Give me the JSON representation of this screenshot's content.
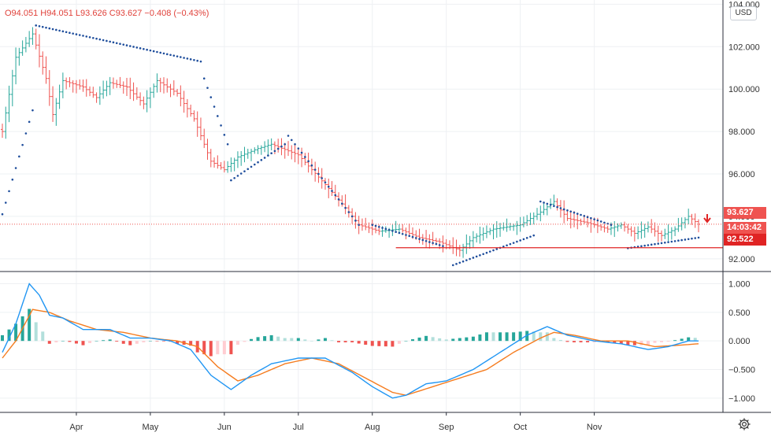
{
  "legend": {
    "open": "O94.051",
    "high": "H94.051",
    "low": "L93.626",
    "close": "C93.627",
    "change": "−0.408 (−0.43%)"
  },
  "currency": "USD",
  "price_tags": {
    "last_price": "93.627",
    "countdown": "14:03:42",
    "horizontal_line": "92.522"
  },
  "colors": {
    "up": "#26a69a",
    "down": "#ef5350",
    "psar": "#1f4e9c",
    "macd": "#2196f3",
    "signal": "#f57c1f",
    "hist_pos_strong": "#26a69a",
    "hist_pos_weak": "#b2dfdb",
    "hist_neg_strong": "#ef5350",
    "hist_neg_weak": "#ffcdd2",
    "last_price_tag": "#ef5350",
    "line_tag": "#e02424"
  },
  "chart_data": [
    {
      "type": "ohlc",
      "title": "",
      "y_ticks": [
        "104.000",
        "102.000",
        "100.000",
        "98.000",
        "96.000",
        "94.000",
        "92.000"
      ],
      "ylim": [
        91.4,
        104.2
      ],
      "x_ticks": [
        "Apr",
        "May",
        "Jun",
        "Jul",
        "Aug",
        "Sep",
        "Oct",
        "Nov"
      ],
      "close_anchors": [
        [
          0,
          98.0
        ],
        [
          4,
          101.5
        ],
        [
          9,
          102.6
        ],
        [
          13,
          100.5
        ],
        [
          15,
          98.8
        ],
        [
          18,
          100.4
        ],
        [
          24,
          100.1
        ],
        [
          28,
          99.6
        ],
        [
          32,
          100.3
        ],
        [
          37,
          100.1
        ],
        [
          42,
          99.3
        ],
        [
          46,
          100.4
        ],
        [
          52,
          99.8
        ],
        [
          57,
          98.6
        ],
        [
          62,
          96.6
        ],
        [
          66,
          96.2
        ],
        [
          70,
          96.8
        ],
        [
          76,
          97.2
        ],
        [
          80,
          97.4
        ],
        [
          88,
          96.9
        ],
        [
          96,
          95.5
        ],
        [
          102,
          94.4
        ],
        [
          106,
          93.6
        ],
        [
          112,
          93.3
        ],
        [
          118,
          93.4
        ],
        [
          124,
          93.0
        ],
        [
          130,
          92.8
        ],
        [
          136,
          92.4
        ],
        [
          140,
          93.0
        ],
        [
          146,
          93.4
        ],
        [
          154,
          93.6
        ],
        [
          160,
          94.2
        ],
        [
          164,
          94.7
        ],
        [
          168,
          93.9
        ],
        [
          174,
          93.7
        ],
        [
          180,
          93.4
        ],
        [
          184,
          93.6
        ],
        [
          188,
          93.2
        ],
        [
          192,
          93.5
        ],
        [
          196,
          93.1
        ],
        [
          200,
          93.4
        ],
        [
          204,
          94.0
        ],
        [
          207,
          93.63
        ]
      ],
      "psar_segments": [
        {
          "start": 0,
          "end": 9,
          "from": 94.1,
          "to": 99.0
        },
        {
          "start": 10,
          "end": 59,
          "from": 103.0,
          "to": 101.3
        },
        {
          "start": 60,
          "end": 67,
          "from": 100.5,
          "to": 97.4
        },
        {
          "start": 68,
          "end": 84,
          "from": 95.7,
          "to": 97.4
        },
        {
          "start": 85,
          "end": 106,
          "from": 97.8,
          "to": 93.6
        },
        {
          "start": 110,
          "end": 131,
          "from": 93.6,
          "to": 92.6
        },
        {
          "start": 134,
          "end": 158,
          "from": 91.7,
          "to": 93.1
        },
        {
          "start": 160,
          "end": 181,
          "from": 94.7,
          "to": 93.6
        },
        {
          "start": 186,
          "end": 207,
          "from": 92.5,
          "to": 93.0
        }
      ],
      "horizontal_line": 92.522
    },
    {
      "type": "macd",
      "y_ticks": [
        "1.000",
        "0.500",
        "0.000",
        "−0.500",
        "−1.000"
      ],
      "ylim": [
        -1.25,
        1.2
      ],
      "macd_anchors": [
        [
          0,
          -0.2
        ],
        [
          4,
          0.3
        ],
        [
          8,
          1.0
        ],
        [
          11,
          0.8
        ],
        [
          14,
          0.45
        ],
        [
          18,
          0.4
        ],
        [
          24,
          0.2
        ],
        [
          32,
          0.2
        ],
        [
          38,
          0.05
        ],
        [
          44,
          0.05
        ],
        [
          50,
          0.0
        ],
        [
          56,
          -0.15
        ],
        [
          62,
          -0.6
        ],
        [
          68,
          -0.85
        ],
        [
          74,
          -0.6
        ],
        [
          80,
          -0.4
        ],
        [
          88,
          -0.3
        ],
        [
          96,
          -0.3
        ],
        [
          104,
          -0.55
        ],
        [
          110,
          -0.8
        ],
        [
          116,
          -1.0
        ],
        [
          120,
          -0.95
        ],
        [
          126,
          -0.75
        ],
        [
          132,
          -0.7
        ],
        [
          140,
          -0.5
        ],
        [
          148,
          -0.2
        ],
        [
          156,
          0.1
        ],
        [
          162,
          0.25
        ],
        [
          168,
          0.1
        ],
        [
          176,
          0.0
        ],
        [
          184,
          -0.05
        ],
        [
          192,
          -0.15
        ],
        [
          198,
          -0.1
        ],
        [
          204,
          0.0
        ],
        [
          207,
          0.0
        ]
      ],
      "signal_anchors": [
        [
          0,
          -0.3
        ],
        [
          4,
          0.0
        ],
        [
          9,
          0.55
        ],
        [
          14,
          0.5
        ],
        [
          20,
          0.35
        ],
        [
          28,
          0.2
        ],
        [
          36,
          0.15
        ],
        [
          44,
          0.05
        ],
        [
          52,
          0.0
        ],
        [
          58,
          -0.1
        ],
        [
          64,
          -0.45
        ],
        [
          70,
          -0.7
        ],
        [
          76,
          -0.6
        ],
        [
          84,
          -0.4
        ],
        [
          92,
          -0.3
        ],
        [
          100,
          -0.4
        ],
        [
          108,
          -0.65
        ],
        [
          116,
          -0.9
        ],
        [
          120,
          -0.95
        ],
        [
          128,
          -0.8
        ],
        [
          136,
          -0.65
        ],
        [
          144,
          -0.5
        ],
        [
          152,
          -0.2
        ],
        [
          160,
          0.05
        ],
        [
          164,
          0.15
        ],
        [
          170,
          0.1
        ],
        [
          178,
          0.0
        ],
        [
          186,
          0.0
        ],
        [
          194,
          -0.1
        ],
        [
          200,
          -0.08
        ],
        [
          207,
          -0.05
        ]
      ]
    }
  ]
}
